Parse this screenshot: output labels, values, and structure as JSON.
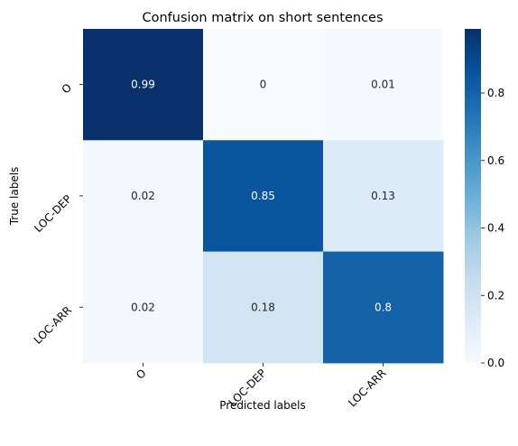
{
  "chart_data": {
    "type": "heatmap",
    "title": "Confusion matrix on short sentences",
    "xlabel": "Predicted labels",
    "ylabel": "True labels",
    "x_categories": [
      "O",
      "LOC-DEP",
      "LOC-ARR"
    ],
    "y_categories": [
      "O",
      "LOC-DEP",
      "LOC-ARR"
    ],
    "values": [
      [
        0.99,
        0,
        0.01
      ],
      [
        0.02,
        0.85,
        0.13
      ],
      [
        0.02,
        0.18,
        0.8
      ]
    ],
    "cell_labels": [
      [
        "0.99",
        "0",
        "0.01"
      ],
      [
        "0.02",
        "0.85",
        "0.13"
      ],
      [
        "0.02",
        "0.18",
        "0.8"
      ]
    ],
    "colormap": "Blues",
    "colorbar": {
      "range": [
        0.0,
        0.99
      ],
      "ticks": [
        0.0,
        0.2,
        0.4,
        0.6,
        0.8
      ],
      "tick_labels": [
        "0.0",
        "0.2",
        "0.4",
        "0.6",
        "0.8"
      ]
    },
    "grid": false
  }
}
